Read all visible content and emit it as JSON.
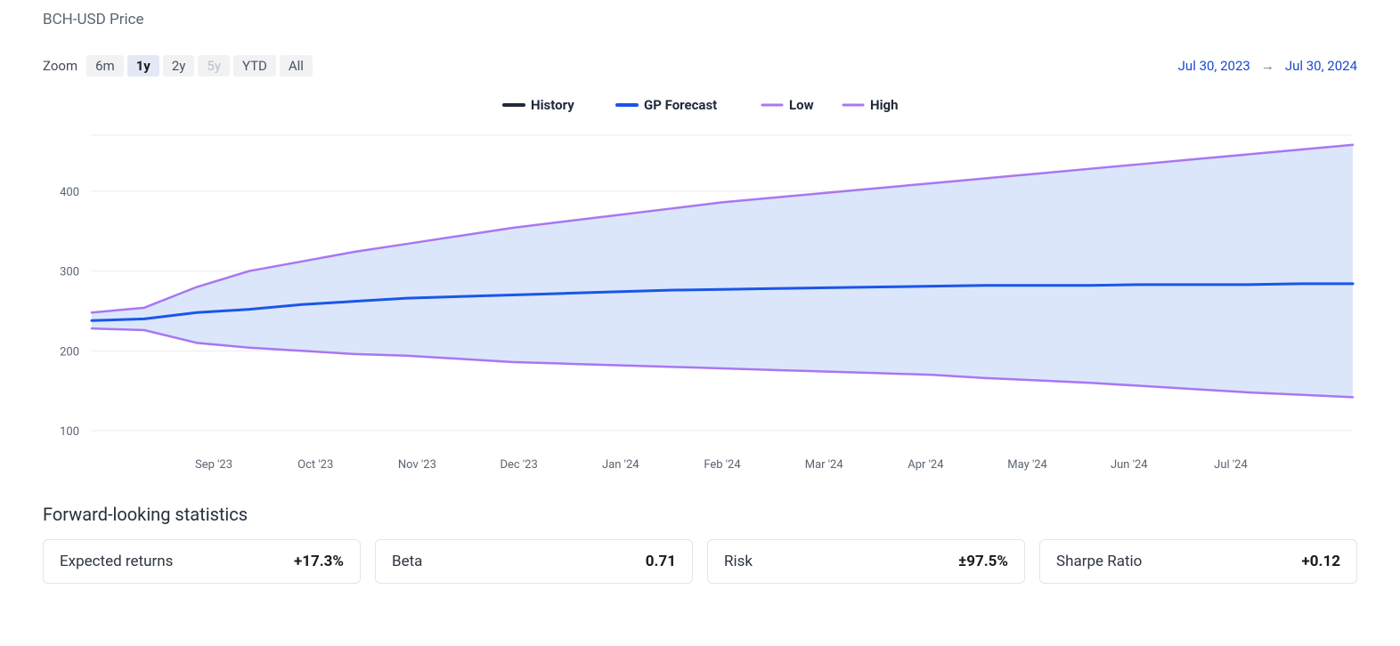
{
  "title": "BCH-USD Price",
  "zoom": {
    "label": "Zoom",
    "options": [
      {
        "label": "6m",
        "state": "normal"
      },
      {
        "label": "1y",
        "state": "active"
      },
      {
        "label": "2y",
        "state": "normal"
      },
      {
        "label": "5y",
        "state": "disabled"
      },
      {
        "label": "YTD",
        "state": "normal"
      },
      {
        "label": "All",
        "state": "normal"
      }
    ]
  },
  "date_range": {
    "from": "Jul 30, 2023",
    "to": "Jul 30, 2024",
    "arrow": "→"
  },
  "legend": [
    {
      "label": "History",
      "color": "#1f2a3a",
      "width": 4
    },
    {
      "label": "GP Forecast",
      "color": "#1a56e8",
      "width": 4
    },
    {
      "label": "Low",
      "color": "#a877f2",
      "width": 3
    },
    {
      "label": "High",
      "color": "#a877f2",
      "width": 3
    }
  ],
  "chart": {
    "type": "line-band",
    "x_labels": [
      "Sep '23",
      "Oct '23",
      "Nov '23",
      "Dec '23",
      "Jan '24",
      "Feb '24",
      "Mar '24",
      "Apr '24",
      "May '24",
      "Jun '24",
      "Jul '24"
    ],
    "y_axis": {
      "min": 80,
      "max": 470,
      "ticks": [
        100,
        200,
        300,
        400
      ]
    },
    "series": {
      "forecast": [
        238,
        240,
        248,
        252,
        258,
        262,
        266,
        268,
        270,
        272,
        274,
        276,
        277,
        278,
        279,
        280,
        281,
        282,
        282,
        282,
        283,
        283,
        283,
        284,
        284
      ],
      "high": [
        248,
        254,
        280,
        300,
        312,
        324,
        334,
        344,
        354,
        362,
        370,
        378,
        386,
        392,
        398,
        404,
        410,
        416,
        422,
        428,
        434,
        440,
        446,
        452,
        458
      ],
      "low": [
        228,
        226,
        210,
        204,
        200,
        196,
        194,
        190,
        186,
        184,
        182,
        180,
        178,
        176,
        174,
        172,
        170,
        166,
        163,
        160,
        156,
        152,
        148,
        145,
        142
      ]
    },
    "colors": {
      "forecast": "#1a56e8",
      "band_line": "#a877f2",
      "band_fill": "#dbe6fb",
      "grid": "#e8ebef",
      "axis_text": "#5a6472",
      "background": "#ffffff"
    },
    "line_widths": {
      "forecast": 3,
      "band": 2.5
    },
    "font": {
      "tick_size": 13
    }
  },
  "stats": {
    "title": "Forward-looking statistics",
    "cards": [
      {
        "label": "Expected returns",
        "value": "+17.3%"
      },
      {
        "label": "Beta",
        "value": "0.71"
      },
      {
        "label": "Risk",
        "value": "±97.5%"
      },
      {
        "label": "Sharpe Ratio",
        "value": "+0.12"
      }
    ]
  }
}
